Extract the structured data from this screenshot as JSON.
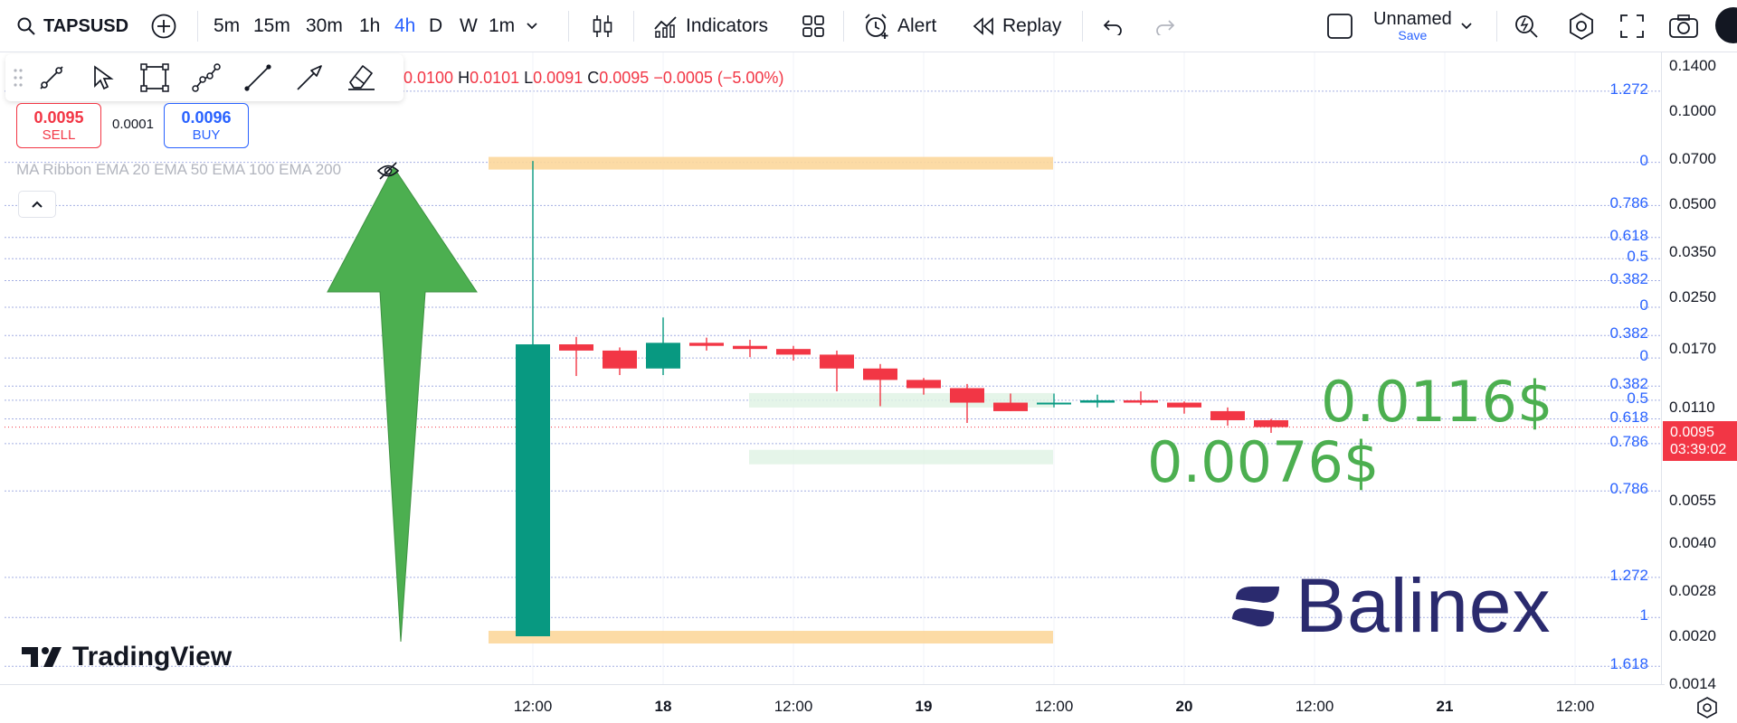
{
  "header": {
    "symbol": "TAPSUSD",
    "timeframes": [
      "5m",
      "15m",
      "30m",
      "1h",
      "4h",
      "D",
      "W",
      "1m"
    ],
    "active_timeframe": "4h",
    "indicators_label": "Indicators",
    "alert_label": "Alert",
    "replay_label": "Replay",
    "layout_name": "Unnamed",
    "save_label": "Save"
  },
  "legend": {
    "open_key": "O",
    "open": "0.0100",
    "high_key": "H",
    "high": "0.0101",
    "low_key": "L",
    "low": "0.0091",
    "close_key": "C",
    "close": "0.0095",
    "change": "−0.0005 (−5.00%)"
  },
  "trade": {
    "sell_price": "0.0095",
    "sell_label": "SELL",
    "spread": "0.0001",
    "buy_price": "0.0096",
    "buy_label": "BUY"
  },
  "indicator": {
    "label": "MA Ribbon EMA 20 EMA 50 EMA 100 EMA 200"
  },
  "annotations": {
    "upper_price": "0.0116$",
    "lower_price": "0.0076$"
  },
  "branding": {
    "tradingview": "TradingView",
    "balinex": "Balinex"
  },
  "price_axis": {
    "ticks": [
      "0.1400",
      "0.1000",
      "0.0700",
      "0.0500",
      "0.0350",
      "0.0250",
      "0.0170",
      "0.0110",
      "0.0055",
      "0.0040",
      "0.0028",
      "0.0020",
      "0.0014"
    ],
    "last_price": "0.0095",
    "countdown": "03:39:02"
  },
  "fib_levels": [
    {
      "label": "1.272",
      "price": 0.116
    },
    {
      "label": "0",
      "price": 0.0683
    },
    {
      "label": "0.786",
      "price": 0.0495
    },
    {
      "label": "0.618",
      "price": 0.039
    },
    {
      "label": "0.5",
      "price": 0.0333
    },
    {
      "label": "0.382",
      "price": 0.0283
    },
    {
      "label": "0",
      "price": 0.0232
    },
    {
      "label": "0.382",
      "price": 0.0188
    },
    {
      "label": "0",
      "price": 0.0159
    },
    {
      "label": "0.382",
      "price": 0.0129
    },
    {
      "label": "0.5",
      "price": 0.0116
    },
    {
      "label": "0.618",
      "price": 0.0101
    },
    {
      "label": "0.786",
      "price": 0.0084
    },
    {
      "label": "0.786",
      "price": 0.0059
    },
    {
      "label": "1.272",
      "price": 0.0031
    },
    {
      "label": "1",
      "price": 0.0023
    },
    {
      "label": "1.618",
      "price": 0.0016
    }
  ],
  "colors": {
    "up": "#089981",
    "down": "#f23645",
    "fib": "#2962ff",
    "zone": "#fcd79b",
    "arrow": "#4caf50",
    "accent": "#2962ff"
  },
  "chart_data": {
    "type": "candlestick",
    "title": "TAPSUSD",
    "x": [
      "17 12:00",
      "17 16:00",
      "17 20:00",
      "18 00:00",
      "18 04:00",
      "18 08:00",
      "18 12:00",
      "18 16:00",
      "18 20:00",
      "19 00:00",
      "19 04:00",
      "19 08:00",
      "19 12:00",
      "19 16:00",
      "19 20:00",
      "20 00:00",
      "20 04:00",
      "20 08:00"
    ],
    "open": [
      0.002,
      0.0176,
      0.0168,
      0.0147,
      0.0178,
      0.0174,
      0.017,
      0.0163,
      0.0147,
      0.0135,
      0.0127,
      0.0114,
      0.0114,
      0.0114,
      0.0116,
      0.0114,
      0.0107,
      0.01
    ],
    "high": [
      0.069,
      0.0186,
      0.0172,
      0.0215,
      0.0185,
      0.0182,
      0.0174,
      0.0168,
      0.0152,
      0.0137,
      0.0131,
      0.0122,
      0.0122,
      0.0121,
      0.0124,
      0.0115,
      0.011,
      0.0101
    ],
    "low": [
      0.002,
      0.0139,
      0.014,
      0.014,
      0.0168,
      0.016,
      0.0156,
      0.0124,
      0.0111,
      0.0121,
      0.0098,
      0.0107,
      0.011,
      0.011,
      0.0112,
      0.0105,
      0.0096,
      0.0091
    ],
    "close": [
      0.0176,
      0.0168,
      0.0147,
      0.0178,
      0.0174,
      0.017,
      0.0163,
      0.0147,
      0.0135,
      0.0127,
      0.0114,
      0.0107,
      0.0114,
      0.0116,
      0.0114,
      0.011,
      0.01,
      0.0095
    ],
    "x_tick_labels": [
      "12:00",
      "18",
      "12:00",
      "19",
      "12:00",
      "20",
      "12:00",
      "21",
      "12:00"
    ],
    "y_scale": "log",
    "y_ticks": [
      0.14,
      0.1,
      0.07,
      0.05,
      0.035,
      0.025,
      0.017,
      0.011,
      0.0055,
      0.004,
      0.0028,
      0.002,
      0.0014
    ],
    "last_price": 0.0095,
    "grid": true
  }
}
